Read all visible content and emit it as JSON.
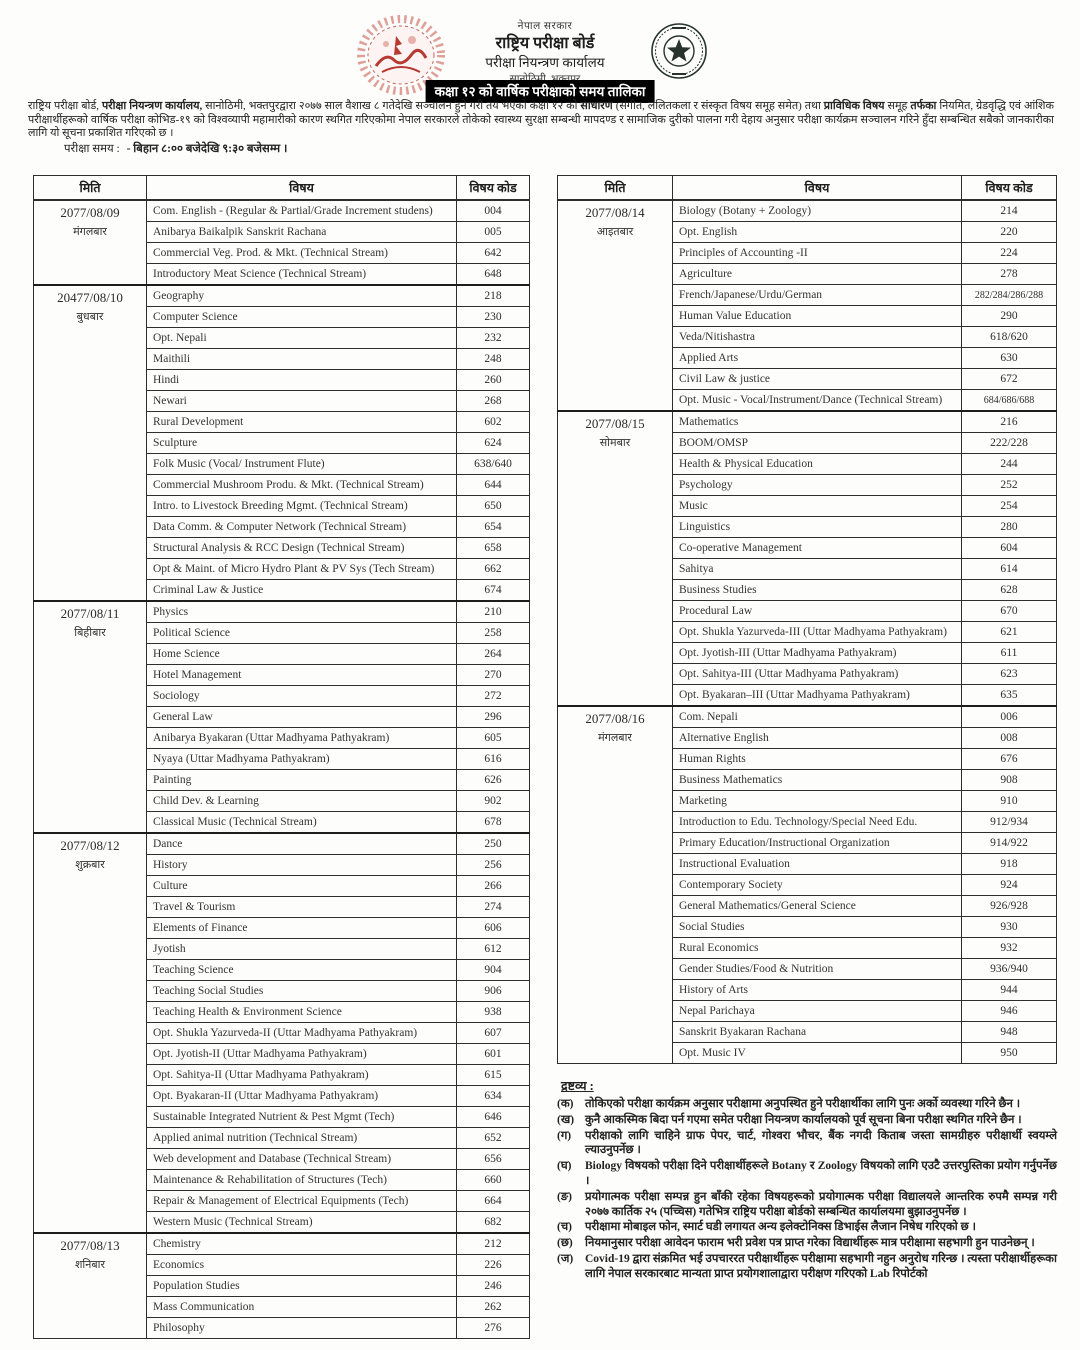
{
  "header": {
    "government": "नेपाल सरकार",
    "board": "राष्ट्रिय परीक्षा बोर्ड",
    "office": "परीक्षा नियन्त्रण कार्यालय",
    "location": "सानोठिमी, भक्तपुर",
    "banner": "कक्षा १२ को वार्षिक परीक्षाको समय तालिका"
  },
  "intro": {
    "paragraph_segments": [
      {
        "text": "राष्ट्रिय परीक्षा बोर्ड, ",
        "bold": false
      },
      {
        "text": "परीक्षा नियन्त्रण कार्यालय,",
        "bold": true
      },
      {
        "text": " सानोठिमी, भक्तपुरद्वारा २०७७ साल वैशाख ८ गतेदेखि सञ्चालन हुने गरी तय भएको कक्षा १२ को ",
        "bold": false
      },
      {
        "text": "साधारण",
        "bold": true
      },
      {
        "text": " (संगीत, ललितकला र संस्कृत विषय समूह समेत) तथा ",
        "bold": false
      },
      {
        "text": "प्राविधिक विषय",
        "bold": true
      },
      {
        "text": " समूह ",
        "bold": false
      },
      {
        "text": "तर्फका",
        "bold": true
      },
      {
        "text": " नियमित, ग्रेडवृद्धि एवं आंशिक परीक्षार्थीहरूको वार्षिक परीक्षा कोभिड-१९ को विश्वव्यापी महामारीको कारण स्थगित गरिएकोमा नेपाल सरकारले तोकेको स्वास्थ्य सुरक्षा सम्बन्धी मापदण्ड र सामाजिक दुरीको पालना गरी देहाय अनुसार परीक्षा कार्यक्रम सञ्चालन गरिने हुँदा सम्बन्धित सबैको जानकारीका लागि यो सूचना प्रकाशित गरिएको छ ।",
        "bold": false
      }
    ],
    "exam_time_label": "परीक्षा समय :",
    "exam_time_value": "- बिहान ८:०० बजेदेखि ९:३० बजेसम्म ।"
  },
  "table_headers": {
    "date": "मिति",
    "subject": "विषय",
    "code": "विषय कोड"
  },
  "left_table": [
    {
      "date": "2077/08/09",
      "day": "मंगलबार",
      "rows": [
        [
          "Com. English - (Regular & Partial/Grade Increment studens)",
          "004"
        ],
        [
          "Anibarya Baikalpik Sanskrit Rachana",
          "005"
        ],
        [
          "Commercial  Veg. Prod. & Mkt.  (Technical Stream)",
          "642"
        ],
        [
          "Introductory Meat Science  (Technical Stream)",
          "648"
        ]
      ]
    },
    {
      "date": "20477/08/10",
      "day": "बुधबार",
      "rows": [
        [
          "Geography",
          "218"
        ],
        [
          "Computer Science",
          "230"
        ],
        [
          "Opt. Nepali",
          "232"
        ],
        [
          "Maithili",
          "248"
        ],
        [
          "Hindi",
          "260"
        ],
        [
          "Newari",
          "268"
        ],
        [
          "Rural Development",
          "602"
        ],
        [
          "Sculpture",
          "624"
        ],
        [
          "Folk Music (Vocal/ Instrument Flute)",
          "638/640"
        ],
        [
          "Commercial Mushroom Produ. & Mkt.  (Technical Stream)",
          "644"
        ],
        [
          "Intro. to Livestock Breeding Mgmt. (Technical Stream)",
          "650"
        ],
        [
          "Data Comm. & Computer Network (Technical Stream)",
          "654"
        ],
        [
          "Structural Analysis & RCC Design (Technical Stream)",
          "658"
        ],
        [
          "Opt & Maint. of Micro Hydro Plant & PV Sys (Tech Stream)",
          "662"
        ],
        [
          "Criminal Law & Justice",
          "674"
        ]
      ]
    },
    {
      "date": "2077/08/11",
      "day": "बिहीबार",
      "rows": [
        [
          "Physics",
          "210"
        ],
        [
          "Political Science",
          "258"
        ],
        [
          "Home Science",
          "264"
        ],
        [
          "Hotel Management",
          "270"
        ],
        [
          "Sociology",
          "272"
        ],
        [
          "General Law",
          "296"
        ],
        [
          "Anibarya Byakaran (Uttar Madhyama Pathyakram)",
          "605"
        ],
        [
          "Nyaya (Uttar Madhyama Pathyakram)",
          "616"
        ],
        [
          "Painting",
          "626"
        ],
        [
          "Child Dev. & Learning",
          "902"
        ],
        [
          "Classical Music (Technical Stream)",
          "678"
        ]
      ]
    },
    {
      "date": "2077/08/12",
      "day": "शुक्रबार",
      "rows": [
        [
          "Dance",
          "250"
        ],
        [
          "History",
          "256"
        ],
        [
          "Culture",
          "266"
        ],
        [
          "Travel & Tourism",
          "274"
        ],
        [
          "Elements of Finance",
          "606"
        ],
        [
          "Jyotish",
          "612"
        ],
        [
          "Teaching Science",
          "904"
        ],
        [
          "Teaching Social Studies",
          "906"
        ],
        [
          "Teaching Health & Environment Science",
          "938"
        ],
        [
          "Opt. Shukla Yazurveda-II (Uttar Madhyama Pathyakram)",
          "607"
        ],
        [
          "Opt. Jyotish-II (Uttar Madhyama Pathyakram)",
          "601"
        ],
        [
          "Opt. Sahitya-II (Uttar Madhyama Pathyakram)",
          "615"
        ],
        [
          "Opt. Byakaran-II (Uttar Madhyama Pathyakram)",
          "634"
        ],
        [
          "Sustainable Integrated Nutrient & Pest Mgmt (Tech)",
          "646"
        ],
        [
          "Applied animal nutrition (Technical Stream)",
          "652"
        ],
        [
          "Web development and Database (Technical Stream)",
          "656"
        ],
        [
          "Maintenance & Rehabilitation of Structures (Tech)",
          "660"
        ],
        [
          "Repair & Management of Electrical Equipments (Tech)",
          "664"
        ],
        [
          "Western Music (Technical Stream)",
          "682"
        ]
      ]
    },
    {
      "date": "2077/08/13",
      "day": "शनिबार",
      "rows": [
        [
          "Chemistry",
          "212"
        ],
        [
          "Economics",
          "226"
        ],
        [
          "Population Studies",
          "246"
        ],
        [
          "Mass Communication",
          "262"
        ],
        [
          "Philosophy",
          "276"
        ]
      ]
    }
  ],
  "right_table": [
    {
      "date": "2077/08/14",
      "day": "आइतबार",
      "rows": [
        [
          "Biology  (Botany + Zoology)",
          "214"
        ],
        [
          "Opt. English",
          "220"
        ],
        [
          "Principles of Accounting -II",
          "224"
        ],
        [
          "Agriculture",
          "278"
        ],
        [
          "French/Japanese/Urdu/German",
          "282/284/286/288"
        ],
        [
          "Human Value Education",
          "290"
        ],
        [
          "Veda/Nitishastra",
          "618/620"
        ],
        [
          "Applied Arts",
          "630"
        ],
        [
          "Civil Law & justice",
          "672"
        ],
        [
          "Opt. Music - Vocal/Instrument/Dance (Technical Stream)",
          "684/686/688"
        ]
      ]
    },
    {
      "date": "2077/08/15",
      "day": "सोमबार",
      "rows": [
        [
          "Mathematics",
          "216"
        ],
        [
          "BOOM/OMSP",
          "222/228"
        ],
        [
          "Health & Physical Education",
          "244"
        ],
        [
          "Psychology",
          "252"
        ],
        [
          "Music",
          "254"
        ],
        [
          "Linguistics",
          "280"
        ],
        [
          "Co-operative Management",
          "604"
        ],
        [
          "Sahitya",
          "614"
        ],
        [
          "Business Studies",
          "628"
        ],
        [
          "Procedural Law",
          "670"
        ],
        [
          "Opt. Shukla Yazurveda-III (Uttar Madhyama Pathyakram)",
          "621"
        ],
        [
          "Opt. Jyotish-III (Uttar Madhyama Pathyakram)",
          "611"
        ],
        [
          "Opt. Sahitya-III (Uttar Madhyama Pathyakram)",
          "623"
        ],
        [
          "Opt. Byakaran–III (Uttar Madhyama Pathyakram)",
          "635"
        ]
      ]
    },
    {
      "date": "2077/08/16",
      "day": "मंगलबार",
      "rows": [
        [
          "Com. Nepali",
          "006"
        ],
        [
          "Alternative English",
          "008"
        ],
        [
          "Human Rights",
          "676"
        ],
        [
          "Business Mathematics",
          "908"
        ],
        [
          "Marketing",
          "910"
        ],
        [
          "Introduction to Edu. Technology/Special Need Edu.",
          "912/934"
        ],
        [
          "Primary Education/Instructional Organization",
          "914/922"
        ],
        [
          "Instructional Evaluation",
          "918"
        ],
        [
          "Contemporary Society",
          "924"
        ],
        [
          "General Mathematics/General Science",
          "926/928"
        ],
        [
          "Social Studies",
          "930"
        ],
        [
          "Rural Economics",
          "932"
        ],
        [
          "Gender Studies/Food & Nutrition",
          "936/940"
        ],
        [
          "History of Arts",
          "944"
        ],
        [
          "Nepal Parichaya",
          "946"
        ],
        [
          "Sanskrit Byakaran Rachana",
          "948"
        ],
        [
          "Opt. Music IV",
          "950"
        ]
      ]
    }
  ],
  "notes": {
    "title": "द्रष्टव्य :",
    "items": [
      {
        "label": "(क)",
        "text": "तोकिएको परीक्षा कार्यक्रम अनुसार परीक्षामा अनुपस्थित हुने परीक्षार्थीका लागि पुनः अर्को व्यवस्था गरिने छैन ।"
      },
      {
        "label": "(ख)",
        "text": "कुनै आकस्मिक बिदा पर्न गएमा समेत परीक्षा नियन्त्रण कार्यालयको पूर्व सूचना बिना परीक्षा स्थगित गरिने छैन ।"
      },
      {
        "label": "(ग)",
        "text": "परीक्षाको लागि चाहिने ग्राफ पेपर, चार्ट, गोश्वरा भौचर, बैंक नगदी किताब जस्ता सामग्रीहरु परीक्षार्थी स्वयम्ले ल्याउनुपर्नेछ ।"
      },
      {
        "label": "(घ)",
        "text": "Biology विषयको परीक्षा दिने परीक्षार्थीहरूले Botany र Zoology विषयको लागि एउटै उत्तरपुस्तिका प्रयोग गर्नुपर्नेछ ।"
      },
      {
        "label": "(ङ)",
        "text": "प्रयोगात्मक परीक्षा सम्पन्न हुन बाँकी रहेका विषयहरूको प्रयोगात्मक परीक्षा विद्यालयले आन्तरिक रुपमै सम्पन्न गरी २०७७ कार्तिक २५ (पच्चिस) गतेभित्र राष्ट्रिय परीक्षा बोर्डको सम्बन्धित कार्यालयमा बुझाउनुपर्नेछ ।"
      },
      {
        "label": "(च)",
        "text": "परीक्षामा मोबाइल फोन, स्मार्ट घडी लगायत अन्य इलेक्टोनिक्स डिभाईस लैजान निषेध गरिएको छ ।"
      },
      {
        "label": "(छ)",
        "text": "नियमानुसार परीक्षा आवेदन फाराम भरी प्रवेश पत्र प्राप्त गरेका विद्यार्थीहरू मात्र परीक्षामा सहभागी हुन पाउनेछन् ।"
      },
      {
        "label": "(ज)",
        "text": "Covid-19 द्वारा संक्रमित भई उपचाररत परीक्षार्थीहरू परीक्षामा सहभागी नहुन अनुरोध गरिन्छ । त्यस्ता परीक्षार्थीहरूका लागि नेपाल सरकारबाट मान्यता प्राप्त प्रयोगशालाद्वारा परीक्षण गरिएको Lab रिपोर्टको"
      }
    ]
  }
}
